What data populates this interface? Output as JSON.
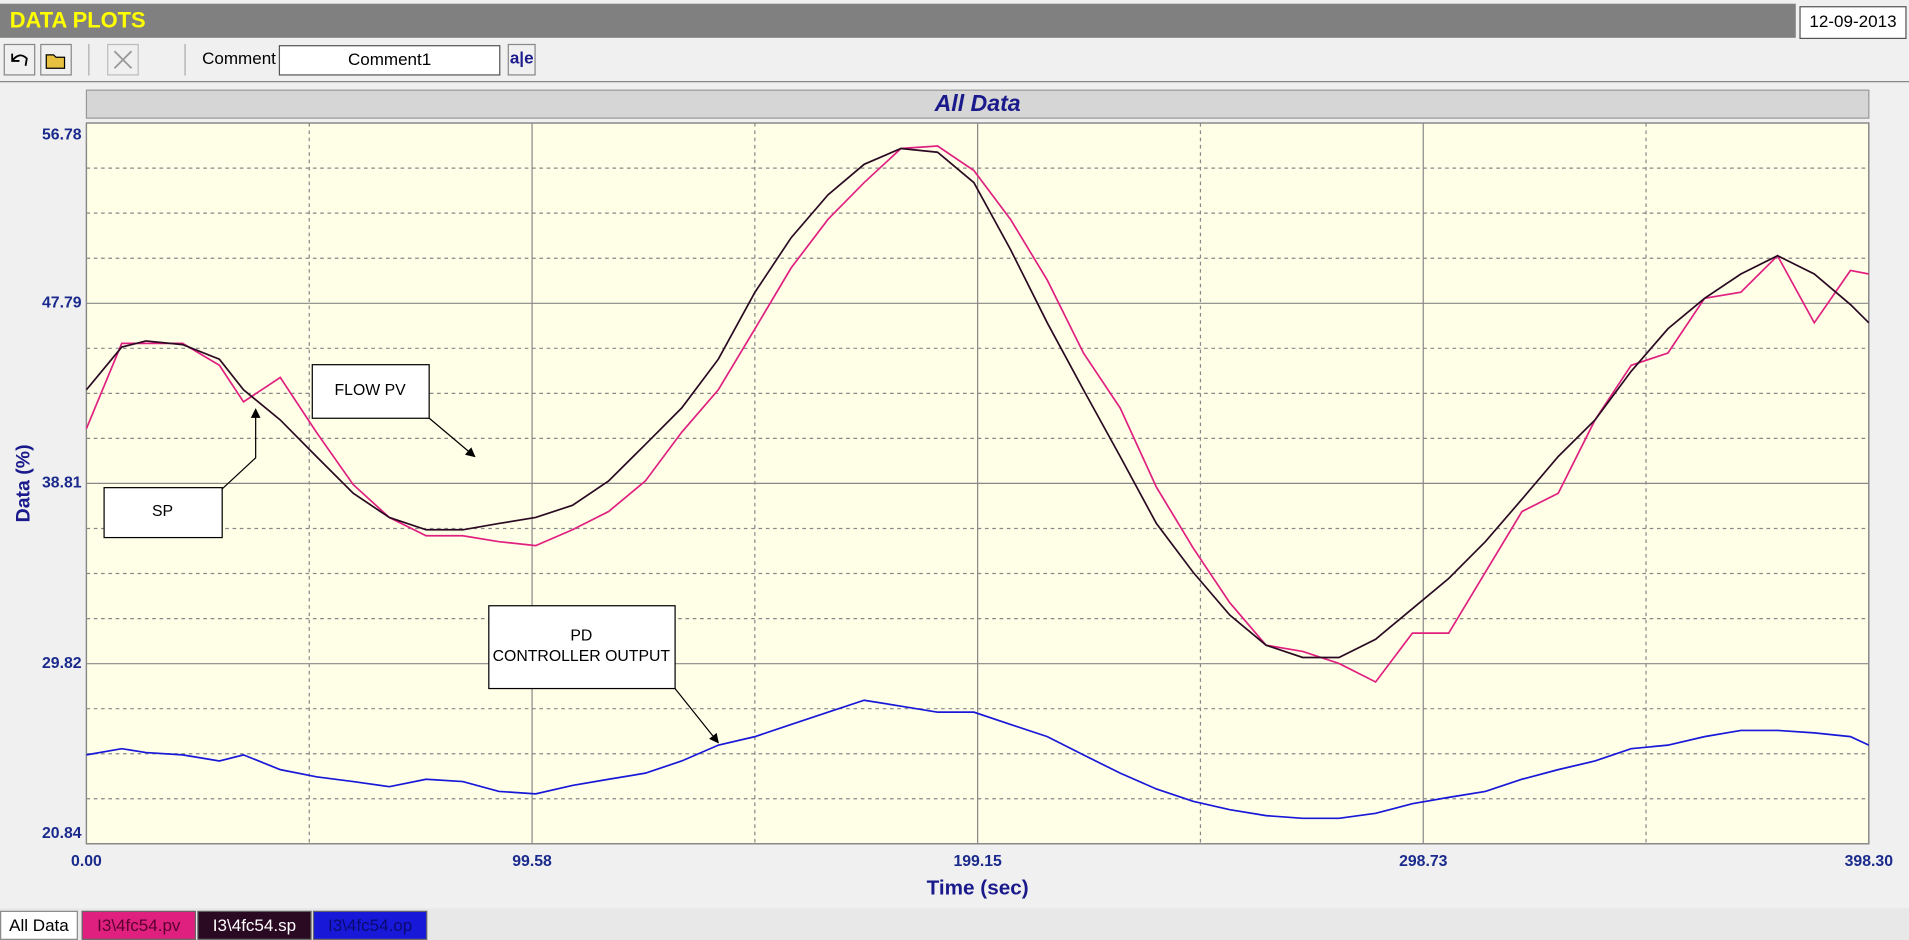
{
  "ui": {
    "header_title": "DATA PLOTS",
    "date": "12-09-2013",
    "comment_label": "Comment",
    "comment_value": "Comment1",
    "format_button": "a|e",
    "tabs": [
      "All Data"
    ]
  },
  "chart_data": {
    "type": "line",
    "title": "All Data",
    "x_label": "Time (sec)",
    "y_label": "Data (%)",
    "x": [
      0,
      7.9,
      13.3,
      21.5,
      29.7,
      35.1,
      43.3,
      51.4,
      59.6,
      67.7,
      75.9,
      84.1,
      92.2,
      100.4,
      108.6,
      116.7,
      124.9,
      133,
      141.2,
      149.4,
      157.5,
      165.7,
      173.8,
      182,
      190.2,
      198.3,
      206.5,
      214.7,
      222.8,
      231,
      239.1,
      247.3,
      255.5,
      263.6,
      271.8,
      279.9,
      288.1,
      296.3,
      304.4,
      312.6,
      320.8,
      328.9,
      337.1,
      345.2,
      353.4,
      361.6,
      369.7,
      377.9,
      386.1,
      394.2,
      398.3
    ],
    "series": [
      {
        "name": "I3\\4fc54.pv",
        "color": "#e0207f",
        "values": [
          41.54,
          45.79,
          45.79,
          45.79,
          44.7,
          42.88,
          44.09,
          41.36,
          38.75,
          37.11,
          36.2,
          36.2,
          35.9,
          35.71,
          36.5,
          37.41,
          38.93,
          41.36,
          43.48,
          46.52,
          49.56,
          51.98,
          53.81,
          55.51,
          55.63,
          54.41,
          51.98,
          48.95,
          45.31,
          42.57,
          38.63,
          35.59,
          32.86,
          30.74,
          30.43,
          29.83,
          28.91,
          31.34,
          31.34,
          34.38,
          37.41,
          38.32,
          41.97,
          44.7,
          45.31,
          48.04,
          48.34,
          50.16,
          46.82,
          49.43,
          49.25
        ]
      },
      {
        "name": "I3\\4fc54.sp",
        "color": "#2a0a22",
        "values": [
          43.48,
          45.61,
          45.91,
          45.73,
          45.0,
          43.48,
          41.97,
          40.15,
          38.32,
          37.11,
          36.5,
          36.5,
          36.81,
          37.11,
          37.72,
          38.93,
          40.75,
          42.57,
          45.0,
          48.34,
          51.07,
          53.2,
          54.72,
          55.51,
          55.32,
          53.81,
          50.47,
          46.82,
          43.48,
          40.15,
          36.81,
          34.38,
          32.25,
          30.74,
          30.13,
          30.13,
          31.04,
          32.56,
          34.07,
          35.9,
          38.02,
          40.15,
          41.97,
          44.4,
          46.52,
          48.04,
          49.25,
          50.16,
          49.25,
          47.73,
          46.82
        ]
      },
      {
        "name": "I3\\4fc54.op",
        "color": "#1818d8",
        "values": [
          25.27,
          25.58,
          25.39,
          25.27,
          24.97,
          25.27,
          24.54,
          24.18,
          23.94,
          23.69,
          24.06,
          23.94,
          23.45,
          23.33,
          23.75,
          24.06,
          24.36,
          24.97,
          25.76,
          26.18,
          26.79,
          27.4,
          28.0,
          27.7,
          27.4,
          27.4,
          26.79,
          26.18,
          25.27,
          24.36,
          23.57,
          22.96,
          22.54,
          22.24,
          22.11,
          22.11,
          22.36,
          22.84,
          23.15,
          23.45,
          24.06,
          24.54,
          24.97,
          25.58,
          25.76,
          26.18,
          26.49,
          26.49,
          26.37,
          26.18,
          25.76
        ]
      }
    ],
    "xlim": [
      0,
      398.3
    ],
    "xticks": [
      {
        "value": 0,
        "label": "0.00"
      },
      99.58,
      199.15,
      298.73,
      {
        "value": 398.3,
        "label": "398.30"
      }
    ],
    "ylim": [
      20.84,
      56.78
    ],
    "yticks": [
      20.84,
      29.82,
      38.81,
      47.79,
      56.78
    ],
    "grid": true,
    "annotations": [
      {
        "lines": [
          "FLOW PV"
        ]
      },
      {
        "lines": [
          "SP"
        ]
      },
      {
        "lines": [
          "PD",
          "CONTROLLER OUTPUT"
        ]
      }
    ]
  }
}
